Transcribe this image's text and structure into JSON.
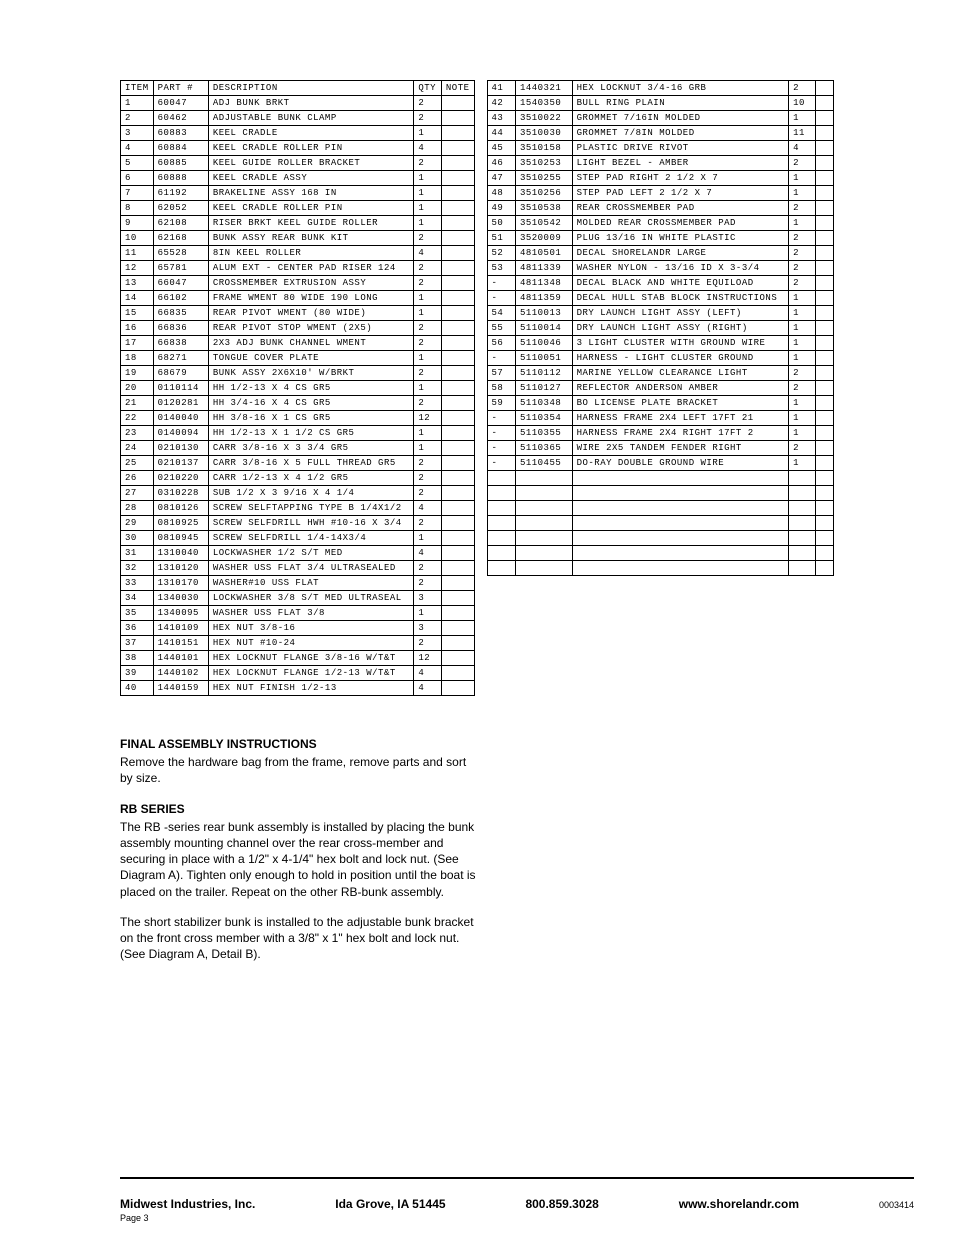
{
  "leftTable": {
    "headers": [
      "ITEM",
      "PART #",
      "DESCRIPTION",
      "QTY",
      "NOTE"
    ],
    "rows": [
      [
        "1",
        "60047",
        "ADJ BUNK BRKT",
        "2",
        ""
      ],
      [
        "2",
        "60462",
        "ADJUSTABLE BUNK CLAMP",
        "2",
        ""
      ],
      [
        "3",
        "60883",
        "KEEL CRADLE",
        "1",
        ""
      ],
      [
        "4",
        "60884",
        "KEEL CRADLE ROLLER PIN",
        "4",
        ""
      ],
      [
        "5",
        "60885",
        "KEEL GUIDE ROLLER BRACKET",
        "2",
        ""
      ],
      [
        "6",
        "60888",
        "KEEL CRADLE ASSY",
        "1",
        ""
      ],
      [
        "7",
        "61192",
        "BRAKELINE ASSY 168 IN",
        "1",
        ""
      ],
      [
        "8",
        "62052",
        "KEEL CRADLE ROLLER PIN",
        "1",
        ""
      ],
      [
        "9",
        "62108",
        "RISER BRKT KEEL GUIDE ROLLER",
        "1",
        ""
      ],
      [
        "10",
        "62168",
        "BUNK ASSY REAR BUNK KIT",
        "2",
        ""
      ],
      [
        "11",
        "65528",
        "8IN KEEL ROLLER",
        "4",
        ""
      ],
      [
        "12",
        "65781",
        "ALUM EXT - CENTER PAD RISER 124",
        "2",
        ""
      ],
      [
        "13",
        "66047",
        "CROSSMEMBER EXTRUSION ASSY",
        "2",
        ""
      ],
      [
        "14",
        "66102",
        "FRAME WMENT 80 WIDE 190 LONG",
        "1",
        ""
      ],
      [
        "15",
        "66835",
        "REAR PIVOT WMENT (80 WIDE)",
        "1",
        ""
      ],
      [
        "16",
        "66836",
        "REAR PIVOT STOP WMENT (2X5)",
        "2",
        ""
      ],
      [
        "17",
        "66838",
        "2X3 ADJ BUNK CHANNEL WMENT",
        "2",
        ""
      ],
      [
        "18",
        "68271",
        "TONGUE COVER PLATE",
        "1",
        ""
      ],
      [
        "19",
        "68679",
        "BUNK ASSY 2X6X10' W/BRKT",
        "2",
        ""
      ],
      [
        "20",
        "0110114",
        "HH 1/2-13 X 4 CS GR5",
        "1",
        ""
      ],
      [
        "21",
        "0120281",
        "HH 3/4-16 X 4 CS GR5",
        "2",
        ""
      ],
      [
        "22",
        "0140040",
        "HH 3/8-16 X 1 CS GR5",
        "12",
        ""
      ],
      [
        "23",
        "0140094",
        "HH 1/2-13 X 1 1/2 CS GR5",
        "1",
        ""
      ],
      [
        "24",
        "0210130",
        "CARR 3/8-16 X 3 3/4 GR5",
        "1",
        ""
      ],
      [
        "25",
        "0210137",
        "CARR 3/8-16 X 5 FULL THREAD GR5",
        "2",
        ""
      ],
      [
        "26",
        "0210220",
        "CARR 1/2-13 X 4 1/2 GR5",
        "2",
        ""
      ],
      [
        "27",
        "0310228",
        "SUB 1/2 X 3 9/16 X 4 1/4",
        "2",
        ""
      ],
      [
        "28",
        "0810126",
        "SCREW SELFTAPPING TYPE B 1/4X1/2",
        "4",
        ""
      ],
      [
        "29",
        "0810925",
        "SCREW SELFDRILL HWH #10-16 X 3/4",
        "2",
        ""
      ],
      [
        "30",
        "0810945",
        "SCREW SELFDRILL  1/4-14X3/4",
        "1",
        ""
      ],
      [
        "31",
        "1310040",
        "LOCKWASHER 1/2 S/T MED",
        "4",
        ""
      ],
      [
        "32",
        "1310120",
        "WASHER USS FLAT 3/4 ULTRASEALED",
        "2",
        ""
      ],
      [
        "33",
        "1310170",
        "WASHER#10 USS FLAT",
        "2",
        ""
      ],
      [
        "34",
        "1340030",
        "LOCKWASHER 3/8 S/T MED ULTRASEAL",
        "3",
        ""
      ],
      [
        "35",
        "1340095",
        "WASHER USS FLAT 3/8",
        "1",
        ""
      ],
      [
        "36",
        "1410109",
        "HEX NUT 3/8-16",
        "3",
        ""
      ],
      [
        "37",
        "1410151",
        "HEX NUT #10-24",
        "2",
        ""
      ],
      [
        "38",
        "1440101",
        "HEX LOCKNUT FLANGE 3/8-16 W/T&T",
        "12",
        ""
      ],
      [
        "39",
        "1440102",
        "HEX LOCKNUT FLANGE 1/2-13 W/T&T",
        "4",
        ""
      ],
      [
        "40",
        "1440159",
        "HEX NUT FINISH 1/2-13",
        "4",
        ""
      ]
    ]
  },
  "rightTable": {
    "rows": [
      [
        "41",
        "1440321",
        "HEX LOCKNUT 3/4-16 GRB",
        "2",
        ""
      ],
      [
        "42",
        "1540350",
        "BULL RING PLAIN",
        "10",
        ""
      ],
      [
        "43",
        "3510022",
        "GROMMET  7/16IN MOLDED",
        "1",
        ""
      ],
      [
        "44",
        "3510030",
        "GROMMET  7/8IN MOLDED",
        "11",
        ""
      ],
      [
        "45",
        "3510158",
        "PLASTIC DRIVE RIVOT",
        "4",
        ""
      ],
      [
        "46",
        "3510253",
        "LIGHT BEZEL - AMBER",
        "2",
        ""
      ],
      [
        "47",
        "3510255",
        "STEP PAD  RIGHT  2 1/2 X  7",
        "1",
        ""
      ],
      [
        "48",
        "3510256",
        "STEP PAD  LEFT  2 1/2 X  7",
        "1",
        ""
      ],
      [
        "49",
        "3510538",
        "REAR CROSSMEMBER PAD",
        "2",
        ""
      ],
      [
        "50",
        "3510542",
        "MOLDED REAR CROSSMEMBER PAD",
        "1",
        ""
      ],
      [
        "51",
        "3520009",
        "PLUG 13/16 IN WHITE PLASTIC",
        "2",
        ""
      ],
      [
        "52",
        "4810501",
        "DECAL SHORELANDR LARGE",
        "2",
        ""
      ],
      [
        "53",
        "4811339",
        "WASHER NYLON - 13/16 ID X 3-3/4",
        "2",
        ""
      ],
      [
        "-",
        "4811348",
        "DECAL BLACK AND WHITE EQUILOAD",
        "2",
        ""
      ],
      [
        "-",
        "4811359",
        "DECAL HULL STAB BLOCK INSTRUCTIONS",
        "1",
        ""
      ],
      [
        "54",
        "5110013",
        "DRY LAUNCH LIGHT ASSY (LEFT)",
        "1",
        ""
      ],
      [
        "55",
        "5110014",
        "DRY LAUNCH LIGHT ASSY (RIGHT)",
        "1",
        ""
      ],
      [
        "56",
        "5110046",
        "3 LIGHT CLUSTER WITH GROUND WIRE",
        "1",
        ""
      ],
      [
        "-",
        "5110051",
        "HARNESS - LIGHT CLUSTER GROUND",
        "1",
        ""
      ],
      [
        "57",
        "5110112",
        "MARINE YELLOW CLEARANCE LIGHT",
        "2",
        ""
      ],
      [
        "58",
        "5110127",
        "REFLECTOR ANDERSON AMBER",
        "2",
        ""
      ],
      [
        "59",
        "5110348",
        "BO LICENSE PLATE BRACKET",
        "1",
        ""
      ],
      [
        "-",
        "5110354",
        "HARNESS  FRAME 2X4 LEFT 17FT 21",
        "1",
        ""
      ],
      [
        "-",
        "5110355",
        "HARNESS  FRAME 2X4 RIGHT 17FT 2",
        "1",
        ""
      ],
      [
        "-",
        "5110365",
        "WIRE  2X5 TANDEM FENDER  RIGHT",
        "2",
        ""
      ],
      [
        "-",
        "5110455",
        "DO-RAY DOUBLE GROUND WIRE",
        "1",
        ""
      ],
      [
        "",
        "",
        "",
        "",
        ""
      ],
      [
        "",
        "",
        "",
        "",
        ""
      ],
      [
        "",
        "",
        "",
        "",
        ""
      ],
      [
        "",
        "",
        "",
        "",
        ""
      ],
      [
        "",
        "",
        "",
        "",
        ""
      ],
      [
        "",
        "",
        "",
        "",
        ""
      ],
      [
        "",
        "",
        "",
        "",
        ""
      ]
    ]
  },
  "instructions": {
    "heading1": "FINAL ASSEMBLY INSTRUCTIONS",
    "para1": "Remove the hardware bag from the frame, remove parts and sort by size.",
    "heading2": "RB SERIES",
    "para2": "The RB -series rear bunk assembly is installed by placing the bunk assembly mounting channel over the rear cross-member and securing in place with a 1/2\" x 4-1/4\" hex bolt and lock nut. (See Diagram A). Tighten only enough to hold in position until the boat is placed on the trailer. Repeat on the other RB-bunk assembly.",
    "para3": "The short stabilizer bunk is installed to the adjustable bunk bracket on the front cross member with a 3/8\" x 1\" hex bolt and lock nut. (See Diagram A, Detail B)."
  },
  "footer": {
    "company": "Midwest Industries, Inc.",
    "city": "Ida Grove, IA  51445",
    "phone": "800.859.3028",
    "web": "www.shorelandr.com",
    "doc": "0003414",
    "page": "Page 3"
  }
}
